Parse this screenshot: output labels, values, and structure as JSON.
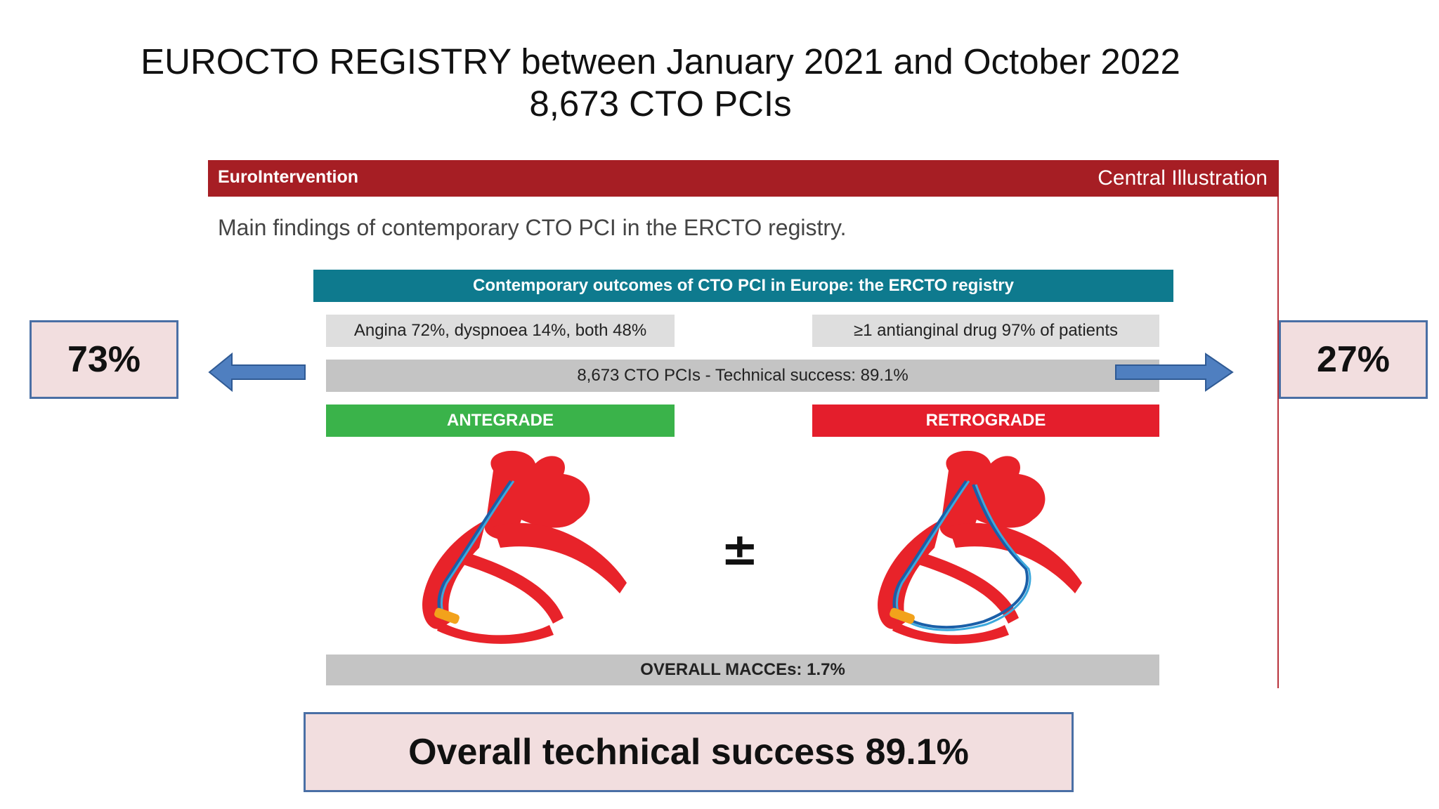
{
  "title": {
    "line1": "EUROCTO REGISTRY between January 2021 and October 2022",
    "line2": "8,673 CTO PCIs"
  },
  "figure": {
    "journal": "EuroIntervention",
    "label": "Central Illustration",
    "subtitle": "Main findings of contemporary CTO PCI in the ERCTO registry.",
    "banner": "Contemporary outcomes of CTO PCI in Europe: the ERCTO registry",
    "symptoms": "Angina 72%, dyspnoea 14%, both 48%",
    "drugs": "≥1 antianginal drug 97% of patients",
    "technical": "8,673 CTO PCIs - Technical success: 89.1%",
    "antegrade": "ANTEGRADE",
    "retrograde": "RETROGRADE",
    "plus_minus": "±",
    "macce": "OVERALL MACCEs: 1.7%"
  },
  "callouts": {
    "left_pct": "73%",
    "right_pct": "27%",
    "overall": "Overall technical success 89.1%"
  },
  "colors": {
    "header": "#a61e24",
    "banner": "#0e7a8e",
    "antegrade": "#3ab34a",
    "retrograde": "#e41e2c",
    "callout_fill": "#f2dedf",
    "callout_border": "#4a6fa5",
    "arrow": "#4f7fc0"
  }
}
